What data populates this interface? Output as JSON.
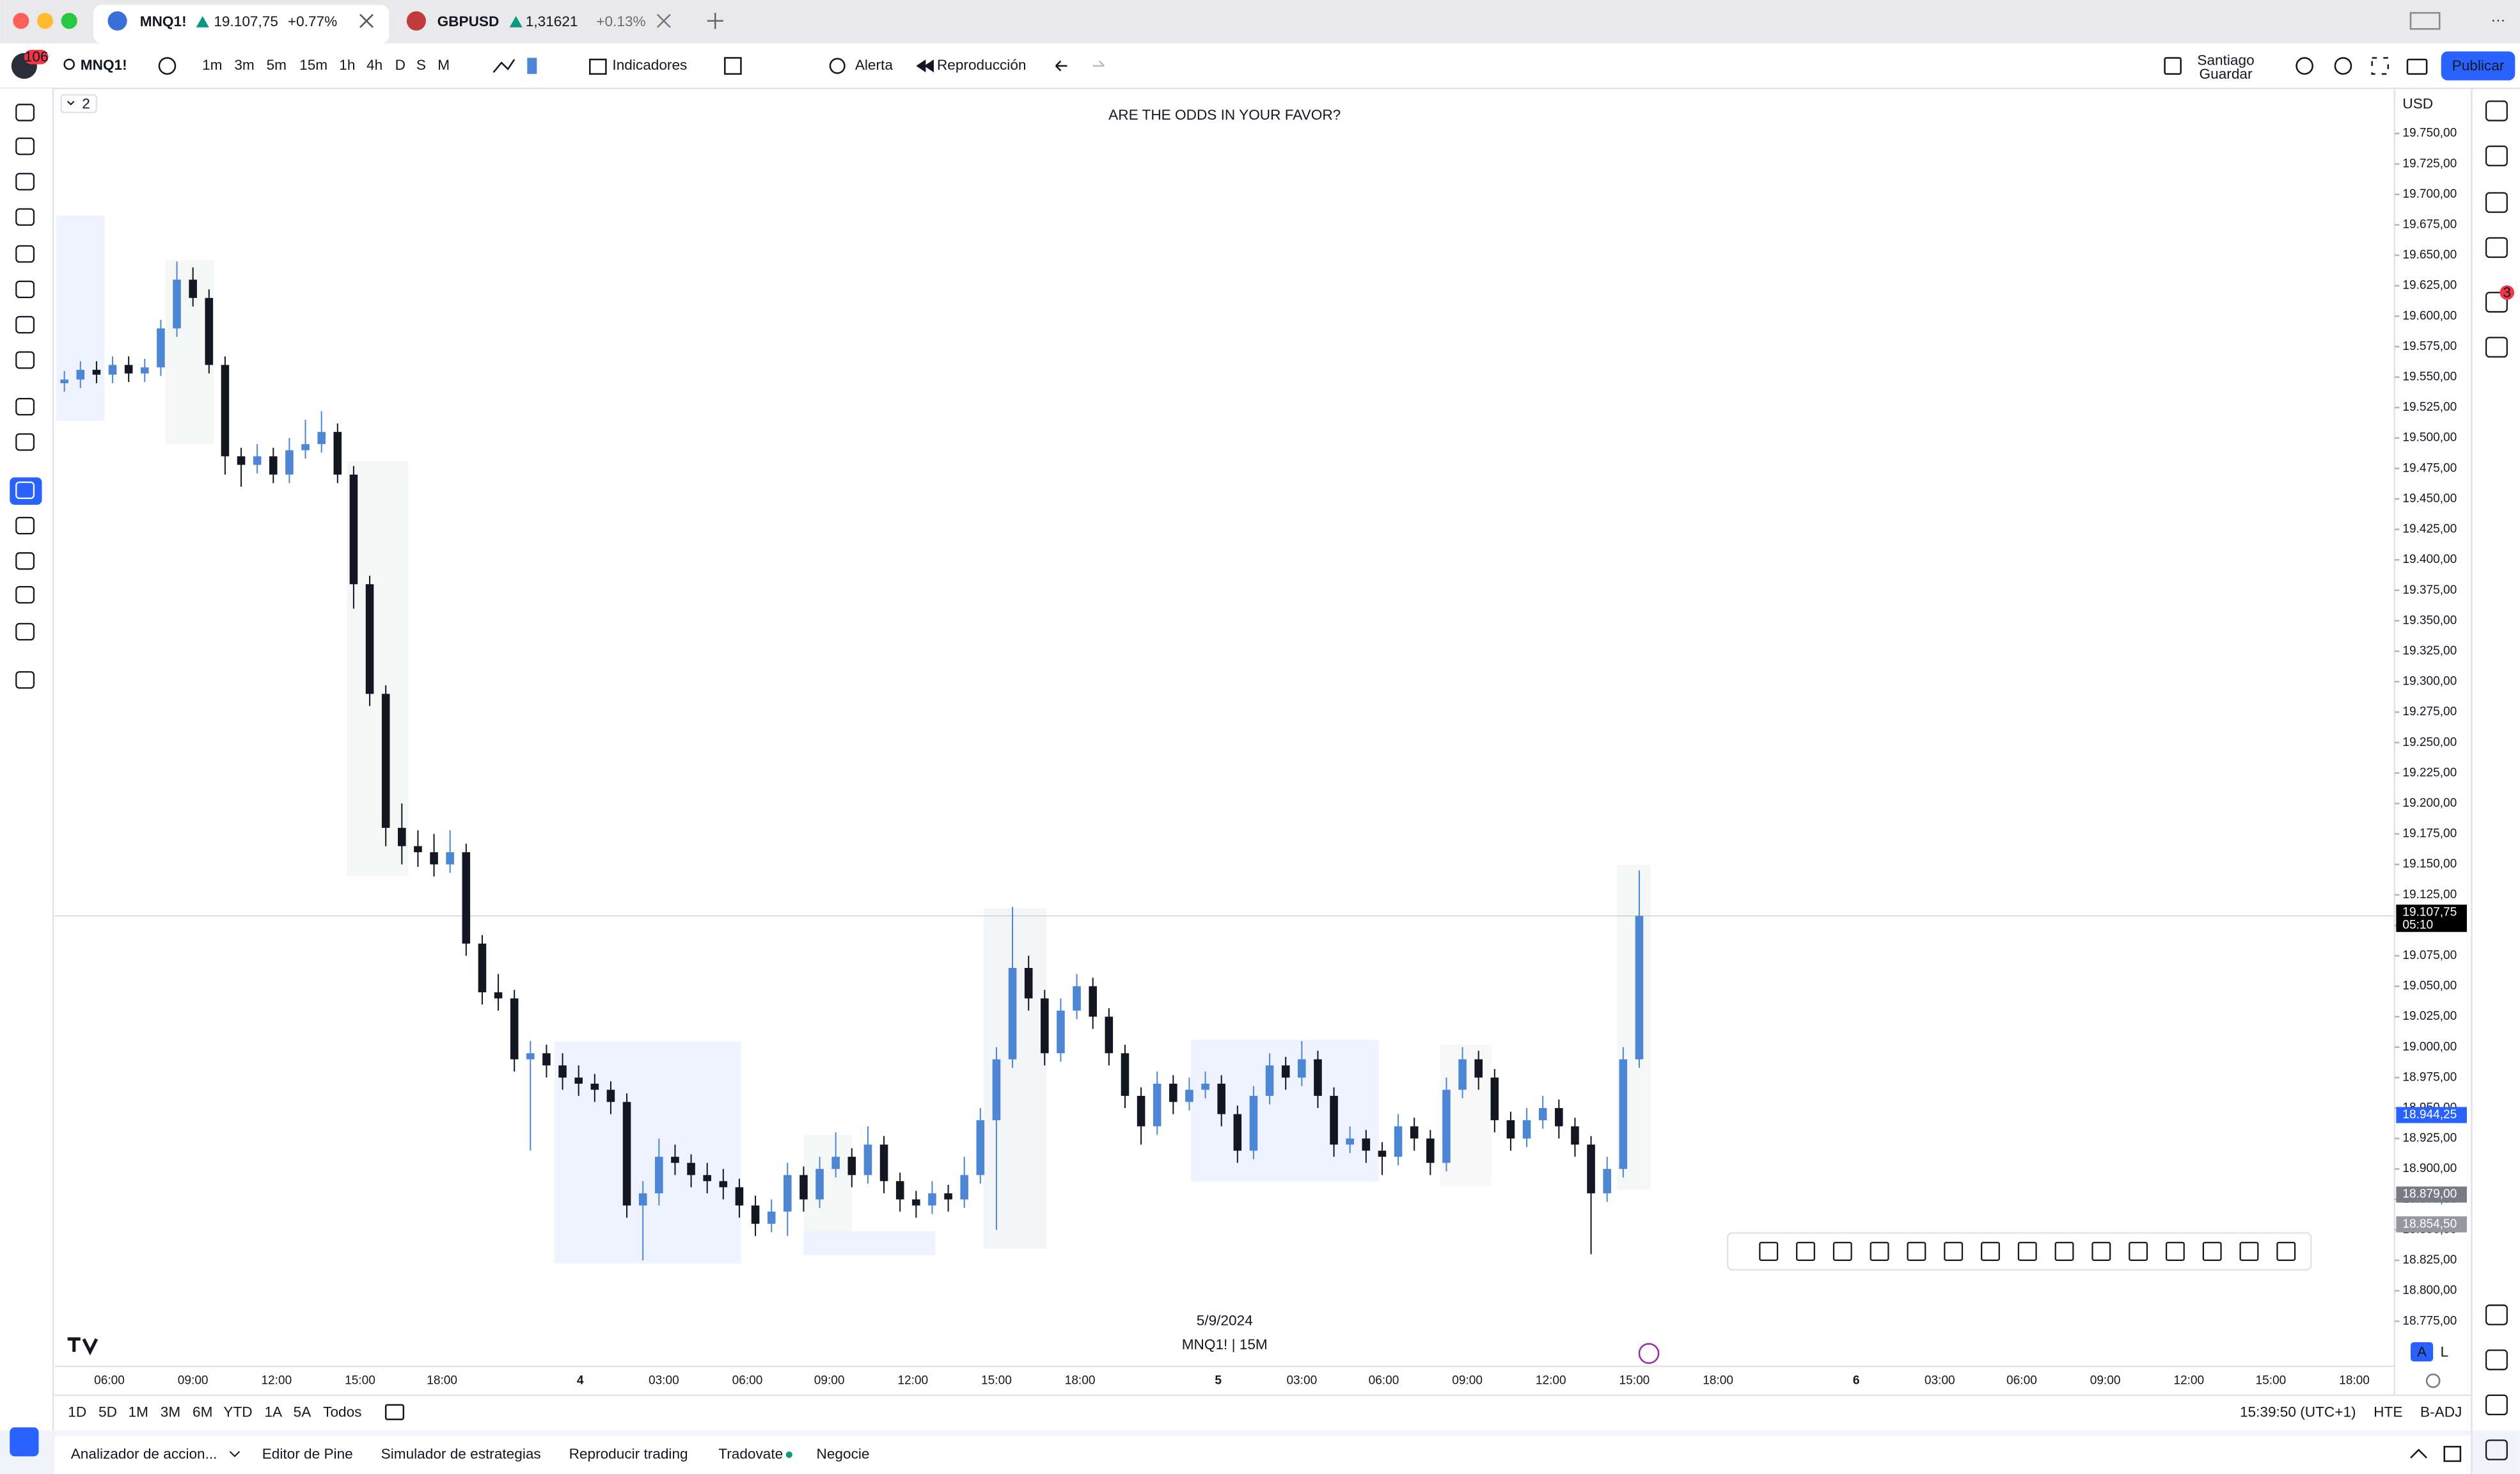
{
  "tabs": [
    {
      "symbol": "MNQ1!",
      "price": "19.107,75",
      "change": "+0.77%"
    },
    {
      "symbol": "GBPUSD",
      "price": "1,31621",
      "change": "+0.13%"
    }
  ],
  "toolbar": {
    "badge": "106",
    "symbol": "MNQ1!",
    "intervals": [
      "1m",
      "3m",
      "5m",
      "15m",
      "1h",
      "4h",
      "D",
      "S",
      "M"
    ],
    "indicators": "Indicadores",
    "alert": "Alerta",
    "replay": "Reproducción",
    "user": "Santiago",
    "user_sub": "Guardar",
    "publish": "Publicar"
  },
  "notif": "3",
  "chart_data": {
    "type": "candlestick",
    "title": "ARE THE ODDS IN YOUR FAVOR?",
    "legend_count": "2",
    "currency": "USD",
    "date_label": "5/9/2024",
    "watermark": "MNQ1! | 15M",
    "up_color": "#4e86d6",
    "down_color": "#131722",
    "ylim": [
      18738,
      19787
    ],
    "yticks": [
      {
        "value": 18775,
        "label": "18.775,00"
      },
      {
        "value": 18800,
        "label": "18.800,00"
      },
      {
        "value": 18825,
        "label": "18.825,00"
      },
      {
        "value": 18850,
        "label": "18.850,00"
      },
      {
        "value": 18875,
        "label": "18.875,00"
      },
      {
        "value": 18900,
        "label": "18.900,00"
      },
      {
        "value": 18925,
        "label": "18.925,00"
      },
      {
        "value": 18950,
        "label": "18.950,00"
      },
      {
        "value": 18975,
        "label": "18.975,00"
      },
      {
        "value": 19000,
        "label": "19.000,00"
      },
      {
        "value": 19025,
        "label": "19.025,00"
      },
      {
        "value": 19050,
        "label": "19.050,00"
      },
      {
        "value": 19075,
        "label": "19.075,00"
      },
      {
        "value": 19100,
        "label": "19.100,00"
      },
      {
        "value": 19125,
        "label": "19.125,00"
      },
      {
        "value": 19150,
        "label": "19.150,00"
      },
      {
        "value": 19175,
        "label": "19.175,00"
      },
      {
        "value": 19200,
        "label": "19.200,00"
      },
      {
        "value": 19225,
        "label": "19.225,00"
      },
      {
        "value": 19250,
        "label": "19.250,00"
      },
      {
        "value": 19275,
        "label": "19.275,00"
      },
      {
        "value": 19300,
        "label": "19.300,00"
      },
      {
        "value": 19325,
        "label": "19.325,00"
      },
      {
        "value": 19350,
        "label": "19.350,00"
      },
      {
        "value": 19375,
        "label": "19.375,00"
      },
      {
        "value": 19400,
        "label": "19.400,00"
      },
      {
        "value": 19425,
        "label": "19.425,00"
      },
      {
        "value": 19450,
        "label": "19.450,00"
      },
      {
        "value": 19475,
        "label": "19.475,00"
      },
      {
        "value": 19500,
        "label": "19.500,00"
      },
      {
        "value": 19525,
        "label": "19.525,00"
      },
      {
        "value": 19550,
        "label": "19.550,00"
      },
      {
        "value": 19575,
        "label": "19.575,00"
      },
      {
        "value": 19600,
        "label": "19.600,00"
      },
      {
        "value": 19625,
        "label": "19.625,00"
      },
      {
        "value": 19650,
        "label": "19.650,00"
      },
      {
        "value": 19675,
        "label": "19.675,00"
      },
      {
        "value": 19700,
        "label": "19.700,00"
      },
      {
        "value": 19725,
        "label": "19.725,00"
      },
      {
        "value": 19750,
        "label": "19.750,00"
      }
    ],
    "last_price": {
      "value": 19107.75,
      "label": "19.107,75"
    },
    "countdown": "05:10",
    "price_labels": [
      {
        "value": 18944.25,
        "label": "18.944,25",
        "color": "#2962ff"
      },
      {
        "value": 18879,
        "label": "18.879,00",
        "color": "#787b86"
      },
      {
        "value": 18854.5,
        "label": "18.854,50",
        "color": "#9598a1"
      }
    ],
    "xticks": [
      "06:00",
      "09:00",
      "12:00",
      "15:00",
      "18:00",
      "4",
      "03:00",
      "06:00",
      "09:00",
      "12:00",
      "15:00",
      "18:00",
      "5",
      "03:00",
      "06:00",
      "09:00",
      "12:00",
      "15:00",
      "18:00",
      "6",
      "03:00",
      "06:00",
      "09:00",
      "12:00",
      "15:00",
      "18:00"
    ],
    "ohlc": [
      [
        19545,
        19555,
        19538,
        19548
      ],
      [
        19548,
        19563,
        19541,
        19556
      ],
      [
        19556,
        19563,
        19545,
        19552
      ],
      [
        19552,
        19567,
        19545,
        19560
      ],
      [
        19560,
        19567,
        19546,
        19553
      ],
      [
        19553,
        19565,
        19546,
        19558
      ],
      [
        19558,
        19597,
        19551,
        19590
      ],
      [
        19590,
        19645,
        19583,
        19630
      ],
      [
        19630,
        19640,
        19608,
        19615
      ],
      [
        19615,
        19622,
        19553,
        19560
      ],
      [
        19560,
        19567,
        19470,
        19485
      ],
      [
        19485,
        19492,
        19460,
        19478
      ],
      [
        19478,
        19495,
        19471,
        19485
      ],
      [
        19485,
        19492,
        19463,
        19470
      ],
      [
        19470,
        19500,
        19463,
        19490
      ],
      [
        19490,
        19515,
        19483,
        19495
      ],
      [
        19495,
        19522,
        19488,
        19505
      ],
      [
        19505,
        19512,
        19463,
        19470
      ],
      [
        19470,
        19477,
        19360,
        19380
      ],
      [
        19380,
        19387,
        19280,
        19290
      ],
      [
        19290,
        19297,
        19165,
        19180
      ],
      [
        19180,
        19200,
        19150,
        19165
      ],
      [
        19165,
        19178,
        19148,
        19160
      ],
      [
        19160,
        19175,
        19140,
        19150
      ],
      [
        19150,
        19178,
        19143,
        19160
      ],
      [
        19160,
        19167,
        19075,
        19085
      ],
      [
        19085,
        19092,
        19035,
        19045
      ],
      [
        19045,
        19060,
        19030,
        19040
      ],
      [
        19040,
        19047,
        18980,
        18990
      ],
      [
        18990,
        19005,
        18915,
        18995
      ],
      [
        18995,
        19002,
        18975,
        18985
      ],
      [
        18985,
        18995,
        18965,
        18975
      ],
      [
        18975,
        18985,
        18960,
        18970
      ],
      [
        18970,
        18978,
        18955,
        18965
      ],
      [
        18965,
        18972,
        18945,
        18955
      ],
      [
        18955,
        18962,
        18860,
        18870
      ],
      [
        18870,
        18890,
        18825,
        18880
      ],
      [
        18880,
        18925,
        18870,
        18910
      ],
      [
        18910,
        18920,
        18895,
        18905
      ],
      [
        18905,
        18912,
        18885,
        18895
      ],
      [
        18895,
        18905,
        18880,
        18890
      ],
      [
        18890,
        18900,
        18875,
        18885
      ],
      [
        18885,
        18892,
        18860,
        18870
      ],
      [
        18870,
        18878,
        18845,
        18855
      ],
      [
        18855,
        18875,
        18848,
        18865
      ],
      [
        18865,
        18905,
        18845,
        18895
      ],
      [
        18895,
        18902,
        18865,
        18875
      ],
      [
        18875,
        18910,
        18868,
        18900
      ],
      [
        18900,
        18930,
        18893,
        18910
      ],
      [
        18910,
        18917,
        18885,
        18895
      ],
      [
        18895,
        18935,
        18888,
        18920
      ],
      [
        18920,
        18927,
        18880,
        18890
      ],
      [
        18890,
        18897,
        18865,
        18875
      ],
      [
        18875,
        18882,
        18860,
        18870
      ],
      [
        18870,
        18890,
        18863,
        18880
      ],
      [
        18880,
        18887,
        18865,
        18875
      ],
      [
        18875,
        18910,
        18868,
        18895
      ],
      [
        18895,
        18950,
        18888,
        18940
      ],
      [
        18940,
        19000,
        18850,
        18990
      ],
      [
        18990,
        19115,
        18983,
        19065
      ],
      [
        19065,
        19075,
        19030,
        19040
      ],
      [
        19040,
        19047,
        18985,
        18995
      ],
      [
        18995,
        19040,
        18988,
        19030
      ],
      [
        19030,
        19060,
        19023,
        19050
      ],
      [
        19050,
        19057,
        19015,
        19025
      ],
      [
        19025,
        19032,
        18985,
        18995
      ],
      [
        18995,
        19002,
        18950,
        18960
      ],
      [
        18960,
        18967,
        18920,
        18935
      ],
      [
        18935,
        18980,
        18928,
        18970
      ],
      [
        18970,
        18977,
        18945,
        18955
      ],
      [
        18955,
        18975,
        18948,
        18965
      ],
      [
        18965,
        18980,
        18958,
        18970
      ],
      [
        18970,
        18977,
        18935,
        18945
      ],
      [
        18945,
        18952,
        18905,
        18915
      ],
      [
        18915,
        18968,
        18908,
        18960
      ],
      [
        18960,
        18995,
        18953,
        18985
      ],
      [
        18985,
        18992,
        18965,
        18975
      ],
      [
        18975,
        19005,
        18968,
        18990
      ],
      [
        18990,
        18997,
        18950,
        18960
      ],
      [
        18960,
        18967,
        18910,
        18920
      ],
      [
        18920,
        18935,
        18913,
        18925
      ],
      [
        18925,
        18932,
        18905,
        18915
      ],
      [
        18915,
        18922,
        18895,
        18910
      ],
      [
        18910,
        18945,
        18903,
        18935
      ],
      [
        18935,
        18942,
        18915,
        18925
      ],
      [
        18925,
        18932,
        18895,
        18905
      ],
      [
        18905,
        18975,
        18898,
        18965
      ],
      [
        18965,
        19000,
        18958,
        18990
      ],
      [
        18990,
        18997,
        18965,
        18975
      ],
      [
        18975,
        18982,
        18930,
        18940
      ],
      [
        18940,
        18947,
        18915,
        18925
      ],
      [
        18925,
        18950,
        18918,
        18940
      ],
      [
        18940,
        18960,
        18933,
        18950
      ],
      [
        18950,
        18957,
        18925,
        18935
      ],
      [
        18935,
        18942,
        18910,
        18920
      ],
      [
        18920,
        18927,
        18830,
        18880
      ],
      [
        18880,
        18910,
        18873,
        18900
      ],
      [
        18900,
        19000,
        18893,
        18990
      ],
      [
        18990,
        19145,
        18983,
        19107.75
      ]
    ]
  },
  "scale_buttons": [
    "A",
    "L"
  ],
  "ranges": [
    "1D",
    "5D",
    "1M",
    "3M",
    "6M",
    "YTD",
    "1A",
    "5A",
    "Todos"
  ],
  "status": {
    "time": "15:39:50 (UTC+1)",
    "session": "HTE",
    "adjustment": "B-ADJ"
  },
  "bottom_tabs": [
    "Analizador de accion...",
    "Editor de Pine",
    "Simulador de estrategias",
    "Reproducir trading",
    "Tradovate",
    "Negocie"
  ]
}
